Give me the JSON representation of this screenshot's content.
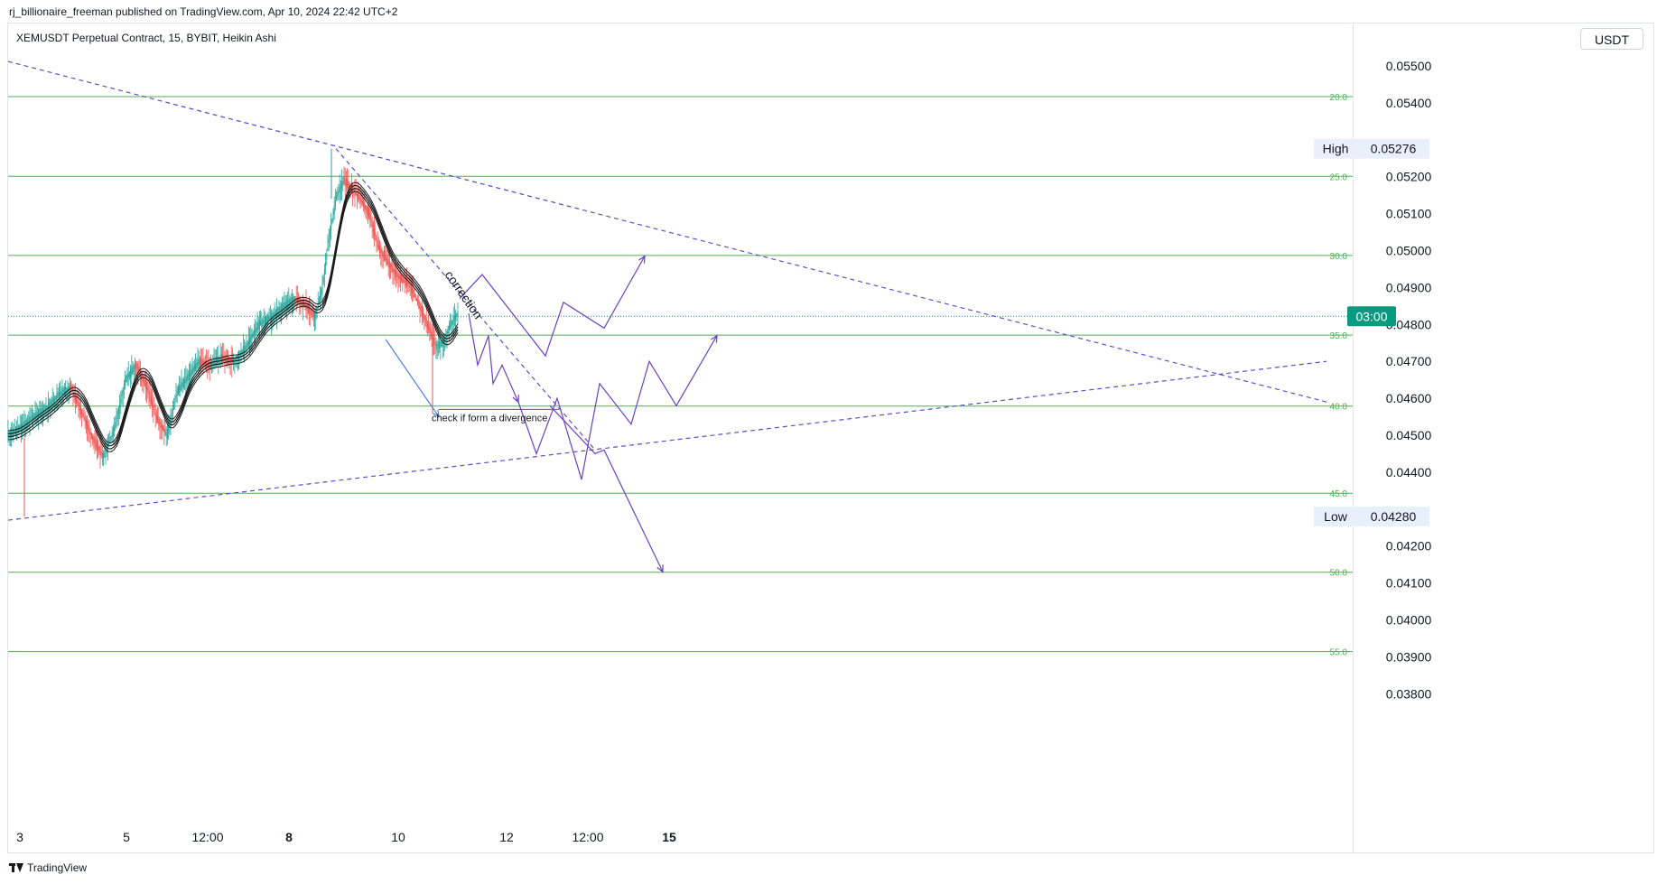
{
  "header": {
    "published_by": "rj_billionaire_freeman published on TradingView.com, Apr 10, 2024 22:42 UTC+2",
    "symbol": "XEMUSDT Perpetual Contract, 15, BYBIT, Heikin Ashi",
    "currency": "USDT"
  },
  "footer": {
    "brand": "TradingView"
  },
  "colors": {
    "up": "#26a69a",
    "down": "#ef5350",
    "level_line": "#4caf50",
    "trend_line": "#5b4ec7",
    "projection": "#6a3fc4",
    "arrow_blue": "#4a7ce8",
    "current_price_bg": "#089981"
  },
  "chart_data": {
    "type": "candlestick",
    "price_scale": {
      "min": 0.038,
      "max": 0.055,
      "step": 0.001
    },
    "y_tick_labels": [
      "0.05500",
      "0.05400",
      "0.05200",
      "0.05100",
      "0.05000",
      "0.04900",
      "0.04800",
      "0.04700",
      "0.04600",
      "0.04500",
      "0.04400",
      "0.04200",
      "0.04100",
      "0.04000",
      "0.03900",
      "0.03800"
    ],
    "x_tick_labels": [
      "3",
      "5",
      "12:00",
      "8",
      "10",
      "12",
      "12:00",
      "15"
    ],
    "x_tick_bold": [
      "8",
      "15"
    ],
    "levels": [
      {
        "label": "20.0",
        "price": 0.05417
      },
      {
        "label": "25.0",
        "price": 0.05201
      },
      {
        "label": "30.0",
        "price": 0.04987
      },
      {
        "label": "35.0",
        "price": 0.04771
      },
      {
        "label": "40.0",
        "price": 0.04579
      },
      {
        "label": "45.0",
        "price": 0.04343
      },
      {
        "label": "50.0",
        "price": 0.04129
      },
      {
        "label": "55.0",
        "price": 0.03914
      }
    ],
    "high": {
      "label": "High",
      "value": "0.05276"
    },
    "low": {
      "label": "Low",
      "value": "0.04280"
    },
    "current_price": 0.04822,
    "countdown": "03:00",
    "annotations": [
      "correction",
      "check if form a divergence"
    ],
    "price_path": [
      [
        0,
        0.045
      ],
      [
        14,
        0.0452
      ],
      [
        28,
        0.0455
      ],
      [
        42,
        0.0457
      ],
      [
        56,
        0.0461
      ],
      [
        70,
        0.0463
      ],
      [
        82,
        0.0456
      ],
      [
        94,
        0.0449
      ],
      [
        106,
        0.0444
      ],
      [
        118,
        0.0452
      ],
      [
        130,
        0.0465
      ],
      [
        142,
        0.0469
      ],
      [
        154,
        0.0463
      ],
      [
        164,
        0.0455
      ],
      [
        176,
        0.045
      ],
      [
        188,
        0.0462
      ],
      [
        200,
        0.0466
      ],
      [
        212,
        0.047
      ],
      [
        224,
        0.0469
      ],
      [
        236,
        0.0471
      ],
      [
        250,
        0.047
      ],
      [
        264,
        0.0474
      ],
      [
        278,
        0.048
      ],
      [
        292,
        0.0482
      ],
      [
        306,
        0.0485
      ],
      [
        318,
        0.0487
      ],
      [
        330,
        0.0485
      ],
      [
        340,
        0.0482
      ],
      [
        348,
        0.049
      ],
      [
        356,
        0.0504
      ],
      [
        364,
        0.0515
      ],
      [
        372,
        0.0519
      ],
      [
        380,
        0.0517
      ],
      [
        390,
        0.0514
      ],
      [
        400,
        0.051
      ],
      [
        410,
        0.0501
      ],
      [
        420,
        0.0497
      ],
      [
        432,
        0.0493
      ],
      [
        444,
        0.0491
      ],
      [
        456,
        0.0485
      ],
      [
        466,
        0.0479
      ],
      [
        474,
        0.0474
      ],
      [
        482,
        0.0475
      ],
      [
        490,
        0.048
      ],
      [
        498,
        0.0483
      ]
    ],
    "trend_lines": [
      {
        "from": [
          0,
          0.05512
        ],
        "to": [
          1460,
          0.0459
        ]
      },
      {
        "from": [
          0,
          0.0427
        ],
        "to": [
          1460,
          0.047
        ]
      },
      {
        "from": [
          363,
          0.05276
        ],
        "to": [
          650,
          0.0446
        ]
      }
    ],
    "projections": [
      [
        [
          500,
          0.0487
        ],
        [
          525,
          0.04935
        ],
        [
          595,
          0.04715
        ],
        [
          615,
          0.0486
        ],
        [
          660,
          0.0479
        ],
        [
          705,
          0.04985
        ]
      ],
      [
        [
          510,
          0.0483
        ],
        [
          520,
          0.0469
        ],
        [
          532,
          0.0477
        ],
        [
          537,
          0.0464
        ],
        [
          547,
          0.0469
        ],
        [
          565,
          0.0459
        ]
      ],
      [
        [
          565,
          0.0459
        ],
        [
          585,
          0.0445
        ],
        [
          608,
          0.046
        ],
        [
          635,
          0.0438
        ],
        [
          655,
          0.0464
        ],
        [
          690,
          0.0453
        ],
        [
          710,
          0.047
        ],
        [
          740,
          0.0458
        ],
        [
          785,
          0.0477
        ]
      ],
      [
        [
          600,
          0.0458
        ],
        [
          650,
          0.0445
        ],
        [
          660,
          0.0446
        ],
        [
          725,
          0.0413
        ]
      ]
    ],
    "blue_arrow": [
      [
        418,
        0.0476
      ],
      [
        477,
        0.0455
      ]
    ],
    "divergence_line": [
      [
        477,
        0.0457
      ],
      [
        610,
        0.0457
      ]
    ]
  }
}
